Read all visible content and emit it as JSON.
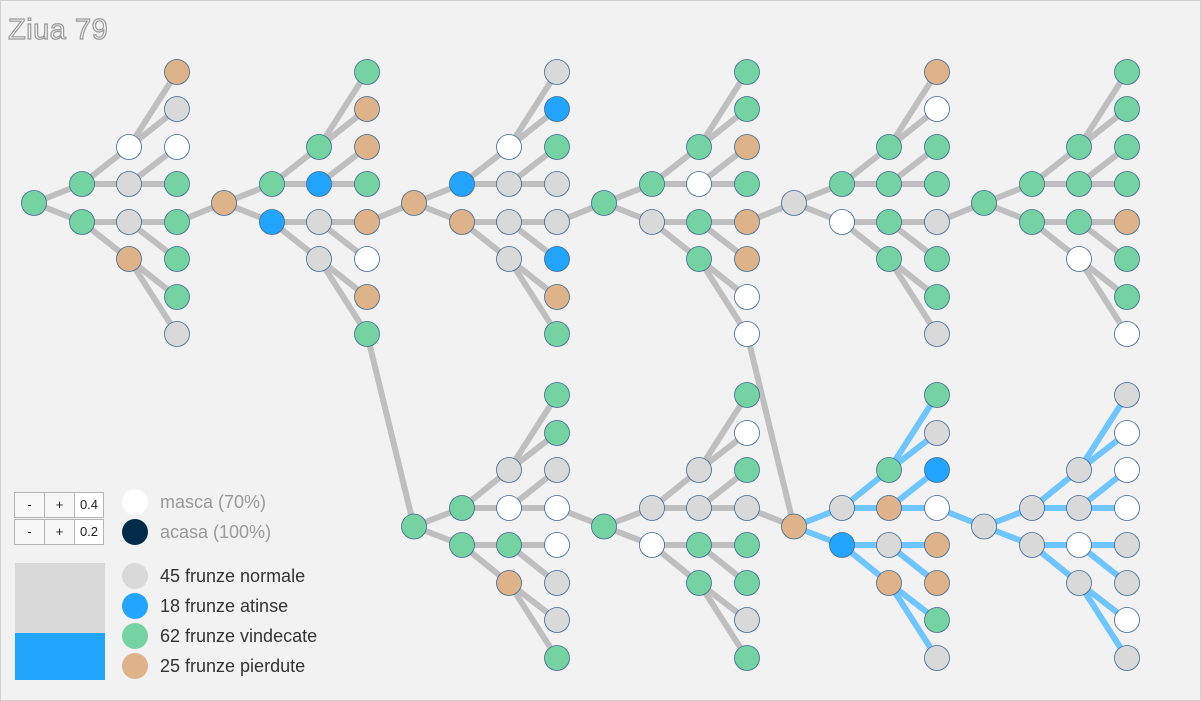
{
  "title": "Ziua 79",
  "colors": {
    "normal": "#d9d9d9",
    "atinse": "#21a5ff",
    "vindecate": "#75d3a3",
    "pierdute": "#deb38a",
    "masca": "#ffffff",
    "acasa": "#002b49",
    "edge": "#bfbfbf",
    "edge_hit": "#6ec5ff",
    "outline": "#3d6790"
  },
  "controls": [
    {
      "minus": "-",
      "plus": "+",
      "value": "0.4"
    },
    {
      "minus": "-",
      "plus": "+",
      "value": "0.2"
    }
  ],
  "legend_states": [
    {
      "label": "masca (70%)",
      "color": "#ffffff"
    },
    {
      "label": "acasa (100%)",
      "color": "#002b49"
    }
  ],
  "legend_counts": [
    {
      "label": "45 frunze normale",
      "color": "#d9d9d9"
    },
    {
      "label": "18 frunze atinse",
      "color": "#21a5ff"
    },
    {
      "label": "62 frunze vindecate",
      "color": "#75d3a3"
    },
    {
      "label": "25 frunze pierdute",
      "color": "#deb38a"
    }
  ],
  "bar": {
    "fill_fraction": 0.4
  },
  "node_rows": [
    "GGGVNNPPNVGGGGNPGAGANN",
    "GPPGPVPGPAPVNNNNAGNNAP",
    "GGGNGVGGGGPGPPVVNGVGGG",
    "GPVGGNGGNGGGGGGVGGGGPG",
    "GVGGGNVGPGGNVVNNGGNVNN",
    "GGGVGNGGNGPNAGPNPGNAVP",
    "PGNNNNNNVNNVVVNNVNNNNN",
    "NGNNANVGGGVVGNVNNNNAN",
    "NVNANNAGAAAAAAAAAAANNN",
    "NNANANGNNAANNNANNNNNNN",
    "NNGGNNAANNNANN",
    "NNNNNN"
  ]
}
